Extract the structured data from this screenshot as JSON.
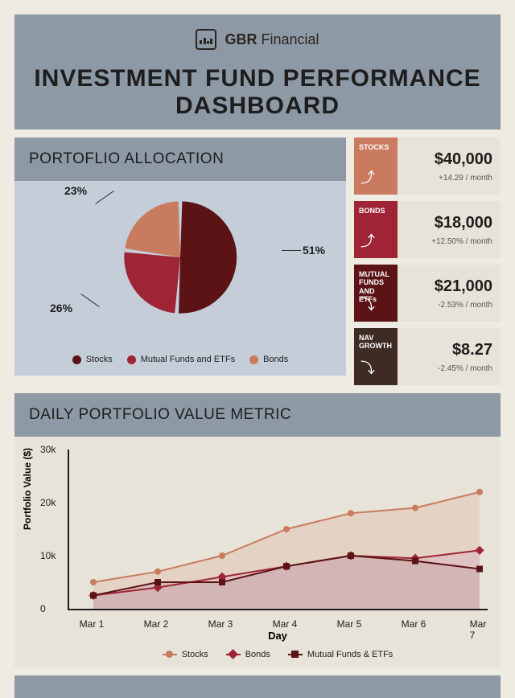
{
  "brand": {
    "bold": "GBR",
    "light": "Financial"
  },
  "title": "INVESTMENT FUND PERFORMANCE DASHBOARD",
  "allocation": {
    "header": "PORTOFLIO ALLOCATION",
    "slices": [
      {
        "label": "Stocks",
        "pct": 51,
        "color": "#5b1316"
      },
      {
        "label": "Mutual Funds and ETFs",
        "pct": 26,
        "color": "#9f2436"
      },
      {
        "label": "Bonds",
        "pct": 23,
        "color": "#c97b5f"
      }
    ],
    "label_positions": {
      "p51": "51%",
      "p26": "26%",
      "p23": "23%"
    },
    "background": "#c4cdd8"
  },
  "cards": [
    {
      "title": "STOCKS",
      "value": "$40,000",
      "sub": "+14.29 / month",
      "color": "#c97b5f",
      "dir": "up"
    },
    {
      "title": "BONDS",
      "value": "$18,000",
      "sub": "+12.50% / month",
      "color": "#9f2436",
      "dir": "up"
    },
    {
      "title": "MUTUAL FUNDS AND ETFs",
      "value": "$21,000",
      "sub": "-2.53% / month",
      "color": "#5b1316",
      "dir": "down"
    },
    {
      "title": "NAV GROWTH",
      "value": "$8.27",
      "sub": "-2.45% / month",
      "color": "#3d2b24",
      "dir": "down"
    }
  ],
  "line_chart": {
    "header": "DAILY PORTFOLIO VALUE METRIC",
    "ylabel": "Portfolio Value ($)",
    "xlabel": "Day",
    "ylim": [
      0,
      30000
    ],
    "yticks": [
      0,
      10000,
      20000,
      30000
    ],
    "ytick_labels": [
      "0",
      "10k",
      "20k",
      "30k"
    ],
    "x_categories": [
      "Mar 1",
      "Mar 2",
      "Mar 3",
      "Mar 4",
      "Mar 5",
      "Mar 6",
      "Mar 7"
    ],
    "series": [
      {
        "name": "Stocks",
        "color": "#c97b5f",
        "fill": "#e3c6b8",
        "marker": "circle",
        "values": [
          5000,
          7000,
          10000,
          15000,
          18000,
          19000,
          22000
        ]
      },
      {
        "name": "Bonds",
        "color": "#9f2436",
        "fill": "#dcb7bf",
        "marker": "diamond",
        "values": [
          2500,
          4000,
          6000,
          8000,
          10000,
          9500,
          11000
        ]
      },
      {
        "name": "Mutual Funds & ETFs",
        "color": "#5b1316",
        "fill": "#c9abab",
        "marker": "square",
        "values": [
          2500,
          5000,
          5000,
          8000,
          10000,
          9000,
          7500
        ]
      }
    ],
    "background": "#e7e3d8"
  }
}
